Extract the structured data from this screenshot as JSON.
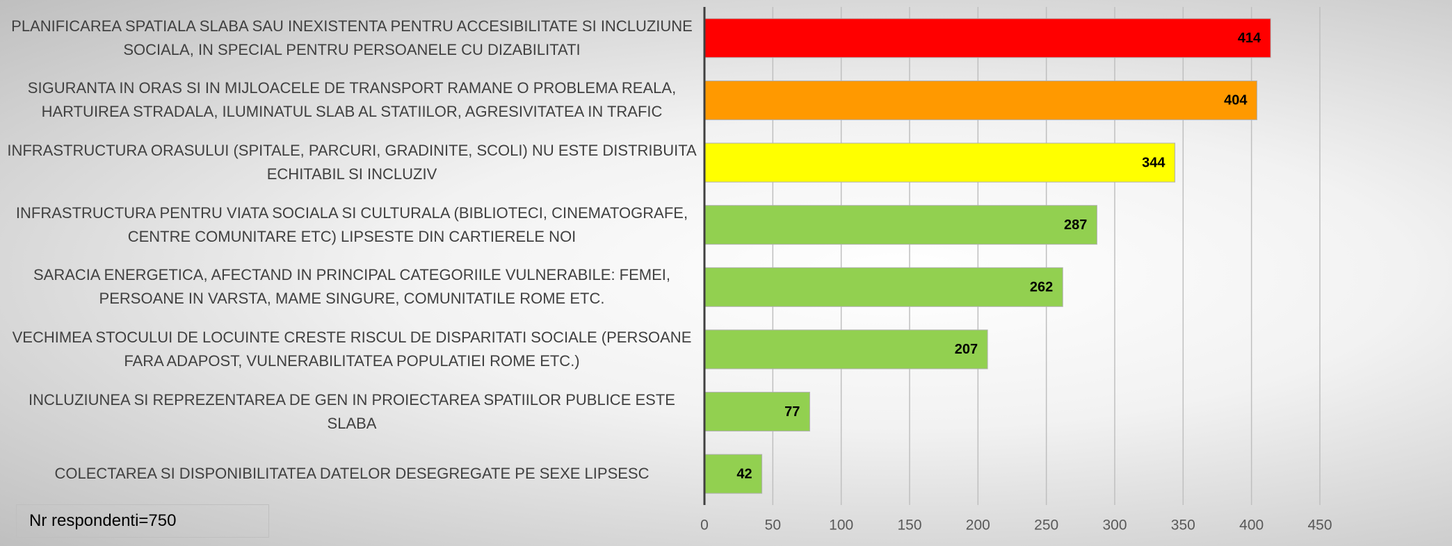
{
  "chart_data": {
    "type": "bar",
    "orientation": "horizontal",
    "categories": [
      "PLANIFICAREA SPATIALA SLABA SAU INEXISTENTA PENTRU ACCESIBILITATE SI INCLUZIUNE SOCIALA, IN SPECIAL PENTRU PERSOANELE CU DIZABILITATI",
      "SIGURANTA IN ORAS SI IN MIJLOACELE DE TRANSPORT RAMANE O PROBLEMA REALA, HARTUIREA STRADALA, ILUMINATUL SLAB AL STATIILOR, AGRESIVITATEA IN TRAFIC",
      "INFRASTRUCTURA ORASULUI (SPITALE, PARCURI, GRADINITE, SCOLI) NU ESTE DISTRIBUITA ECHITABIL SI INCLUZIV",
      "INFRASTRUCTURA PENTRU VIATA SOCIALA SI CULTURALA (BIBLIOTECI, CINEMATOGRAFE, CENTRE COMUNITARE ETC) LIPSESTE DIN  CARTIERELE NOI",
      "SARACIA ENERGETICA, AFECTAND IN PRINCIPAL CATEGORIILE VULNERABILE: FEMEI, PERSOANE IN VARSTA, MAME SINGURE, COMUNITATILE ROME ETC.",
      "VECHIMEA STOCULUI DE LOCUINTE CRESTE RISCUL DE DISPARITATI SOCIALE (PERSOANE FARA ADAPOST, VULNERABILITATEA POPULATIEI ROME ETC.)",
      "INCLUZIUNEA SI REPREZENTAREA DE GEN IN PROIECTAREA SPATIILOR PUBLICE ESTE SLABA",
      "COLECTAREA SI DISPONIBILITATEA DATELOR DESEGREGATE PE SEXE LIPSESC"
    ],
    "values": [
      414,
      404,
      344,
      287,
      262,
      207,
      77,
      42
    ],
    "colors": [
      "#ff0000",
      "#ff9900",
      "#ffff00",
      "#92d050",
      "#92d050",
      "#92d050",
      "#92d050",
      "#92d050"
    ],
    "xlim": [
      0,
      450
    ],
    "xticks": [
      0,
      50,
      100,
      150,
      200,
      250,
      300,
      350,
      400,
      450
    ],
    "grid": true,
    "annotation": "Nr respondenti=750"
  }
}
